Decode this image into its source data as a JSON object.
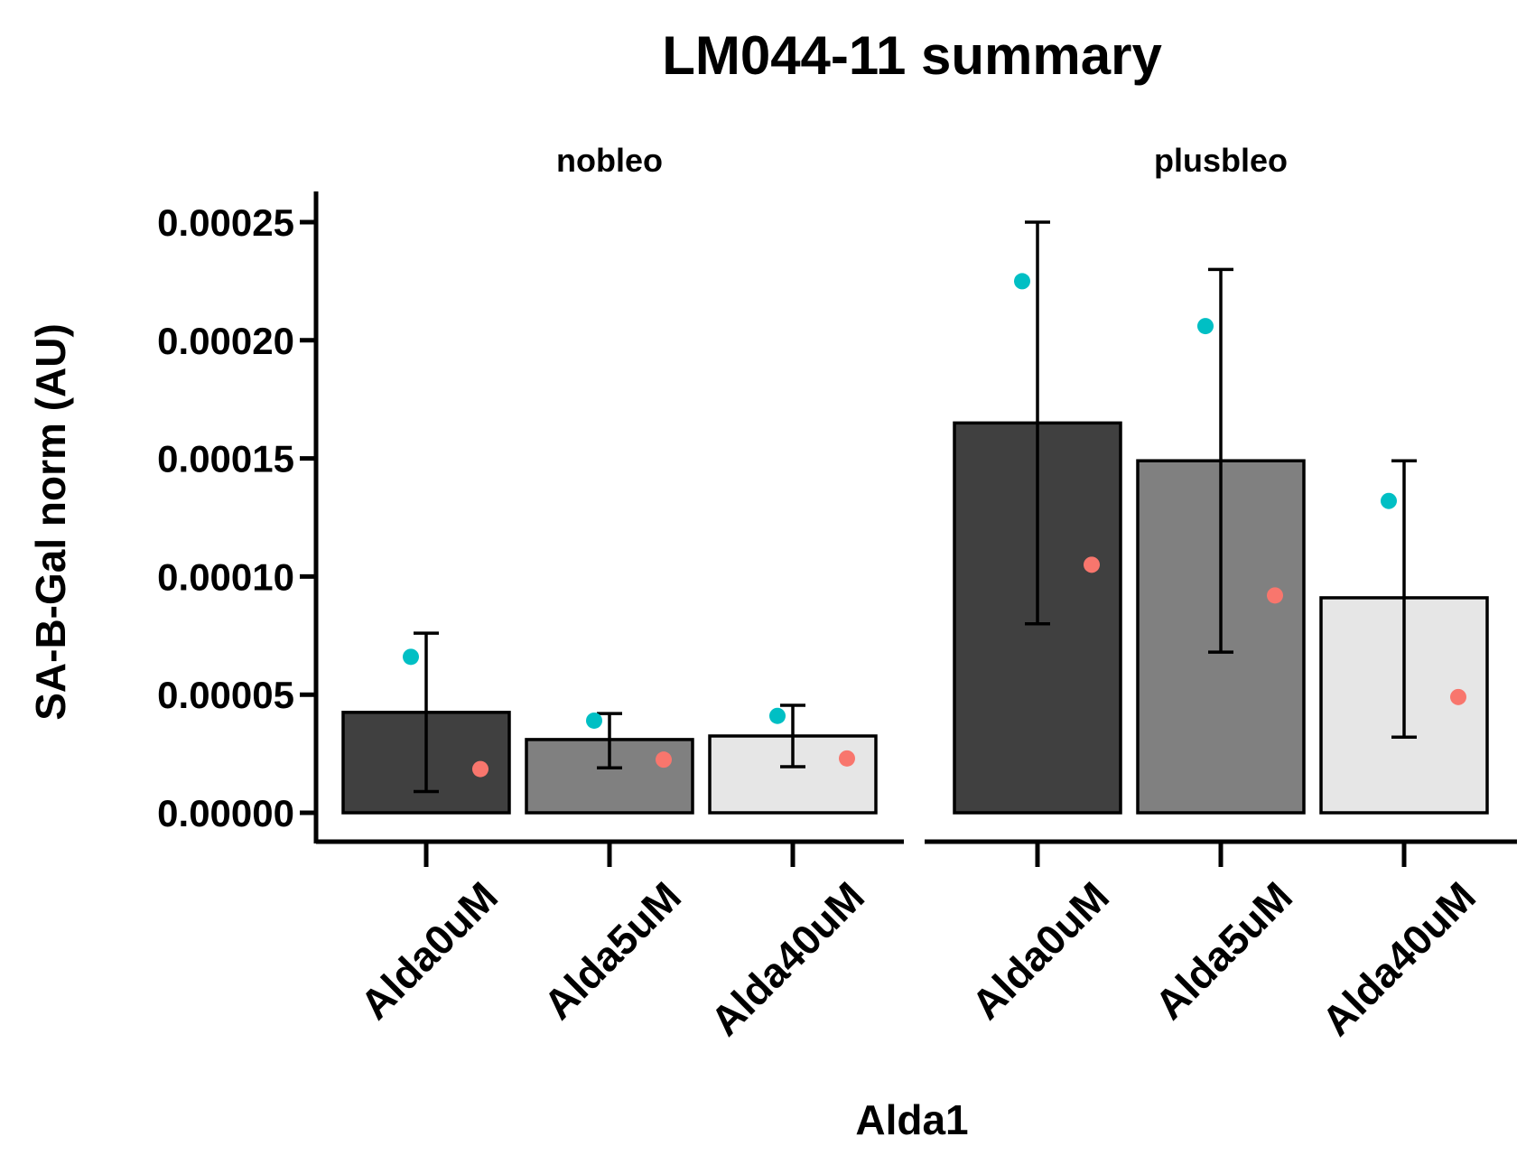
{
  "chart_data": {
    "type": "bar",
    "title": "LM044-11 summary",
    "xlabel": "Alda1",
    "ylabel": "SA-B-Gal norm (AU)",
    "ylim": [
      0,
      0.00025
    ],
    "yticks": [
      "0.00000",
      "0.00005",
      "0.00010",
      "0.00015",
      "0.00020",
      "0.00025"
    ],
    "categories": [
      "Alda0uM",
      "Alda5uM",
      "Alda40uM"
    ],
    "bar_colors": [
      "#404040",
      "#808080",
      "#e6e6e6"
    ],
    "point_colors": {
      "teal": "#00bfc4",
      "salmon": "#f8766d"
    },
    "panels": [
      {
        "name": "nobleo",
        "bars": [
          {
            "category": "Alda0uM",
            "value": 4.25e-05,
            "err_low": 9e-06,
            "err_high": 7.6e-05,
            "teal": 6.6e-05,
            "salmon": 1.85e-05
          },
          {
            "category": "Alda5uM",
            "value": 3.1e-05,
            "err_low": 1.9e-05,
            "err_high": 4.2e-05,
            "teal": 3.9e-05,
            "salmon": 2.25e-05
          },
          {
            "category": "Alda40uM",
            "value": 3.25e-05,
            "err_low": 1.95e-05,
            "err_high": 4.55e-05,
            "teal": 4.1e-05,
            "salmon": 2.3e-05
          }
        ]
      },
      {
        "name": "plusbleo",
        "bars": [
          {
            "category": "Alda0uM",
            "value": 0.000165,
            "err_low": 8e-05,
            "err_high": 0.00025,
            "teal": 0.000225,
            "salmon": 0.000105
          },
          {
            "category": "Alda5uM",
            "value": 0.000149,
            "err_low": 6.8e-05,
            "err_high": 0.00023,
            "teal": 0.000206,
            "salmon": 9.2e-05
          },
          {
            "category": "Alda40uM",
            "value": 9.1e-05,
            "err_low": 3.2e-05,
            "err_high": 0.000149,
            "teal": 0.000132,
            "salmon": 4.9e-05
          }
        ]
      }
    ]
  }
}
